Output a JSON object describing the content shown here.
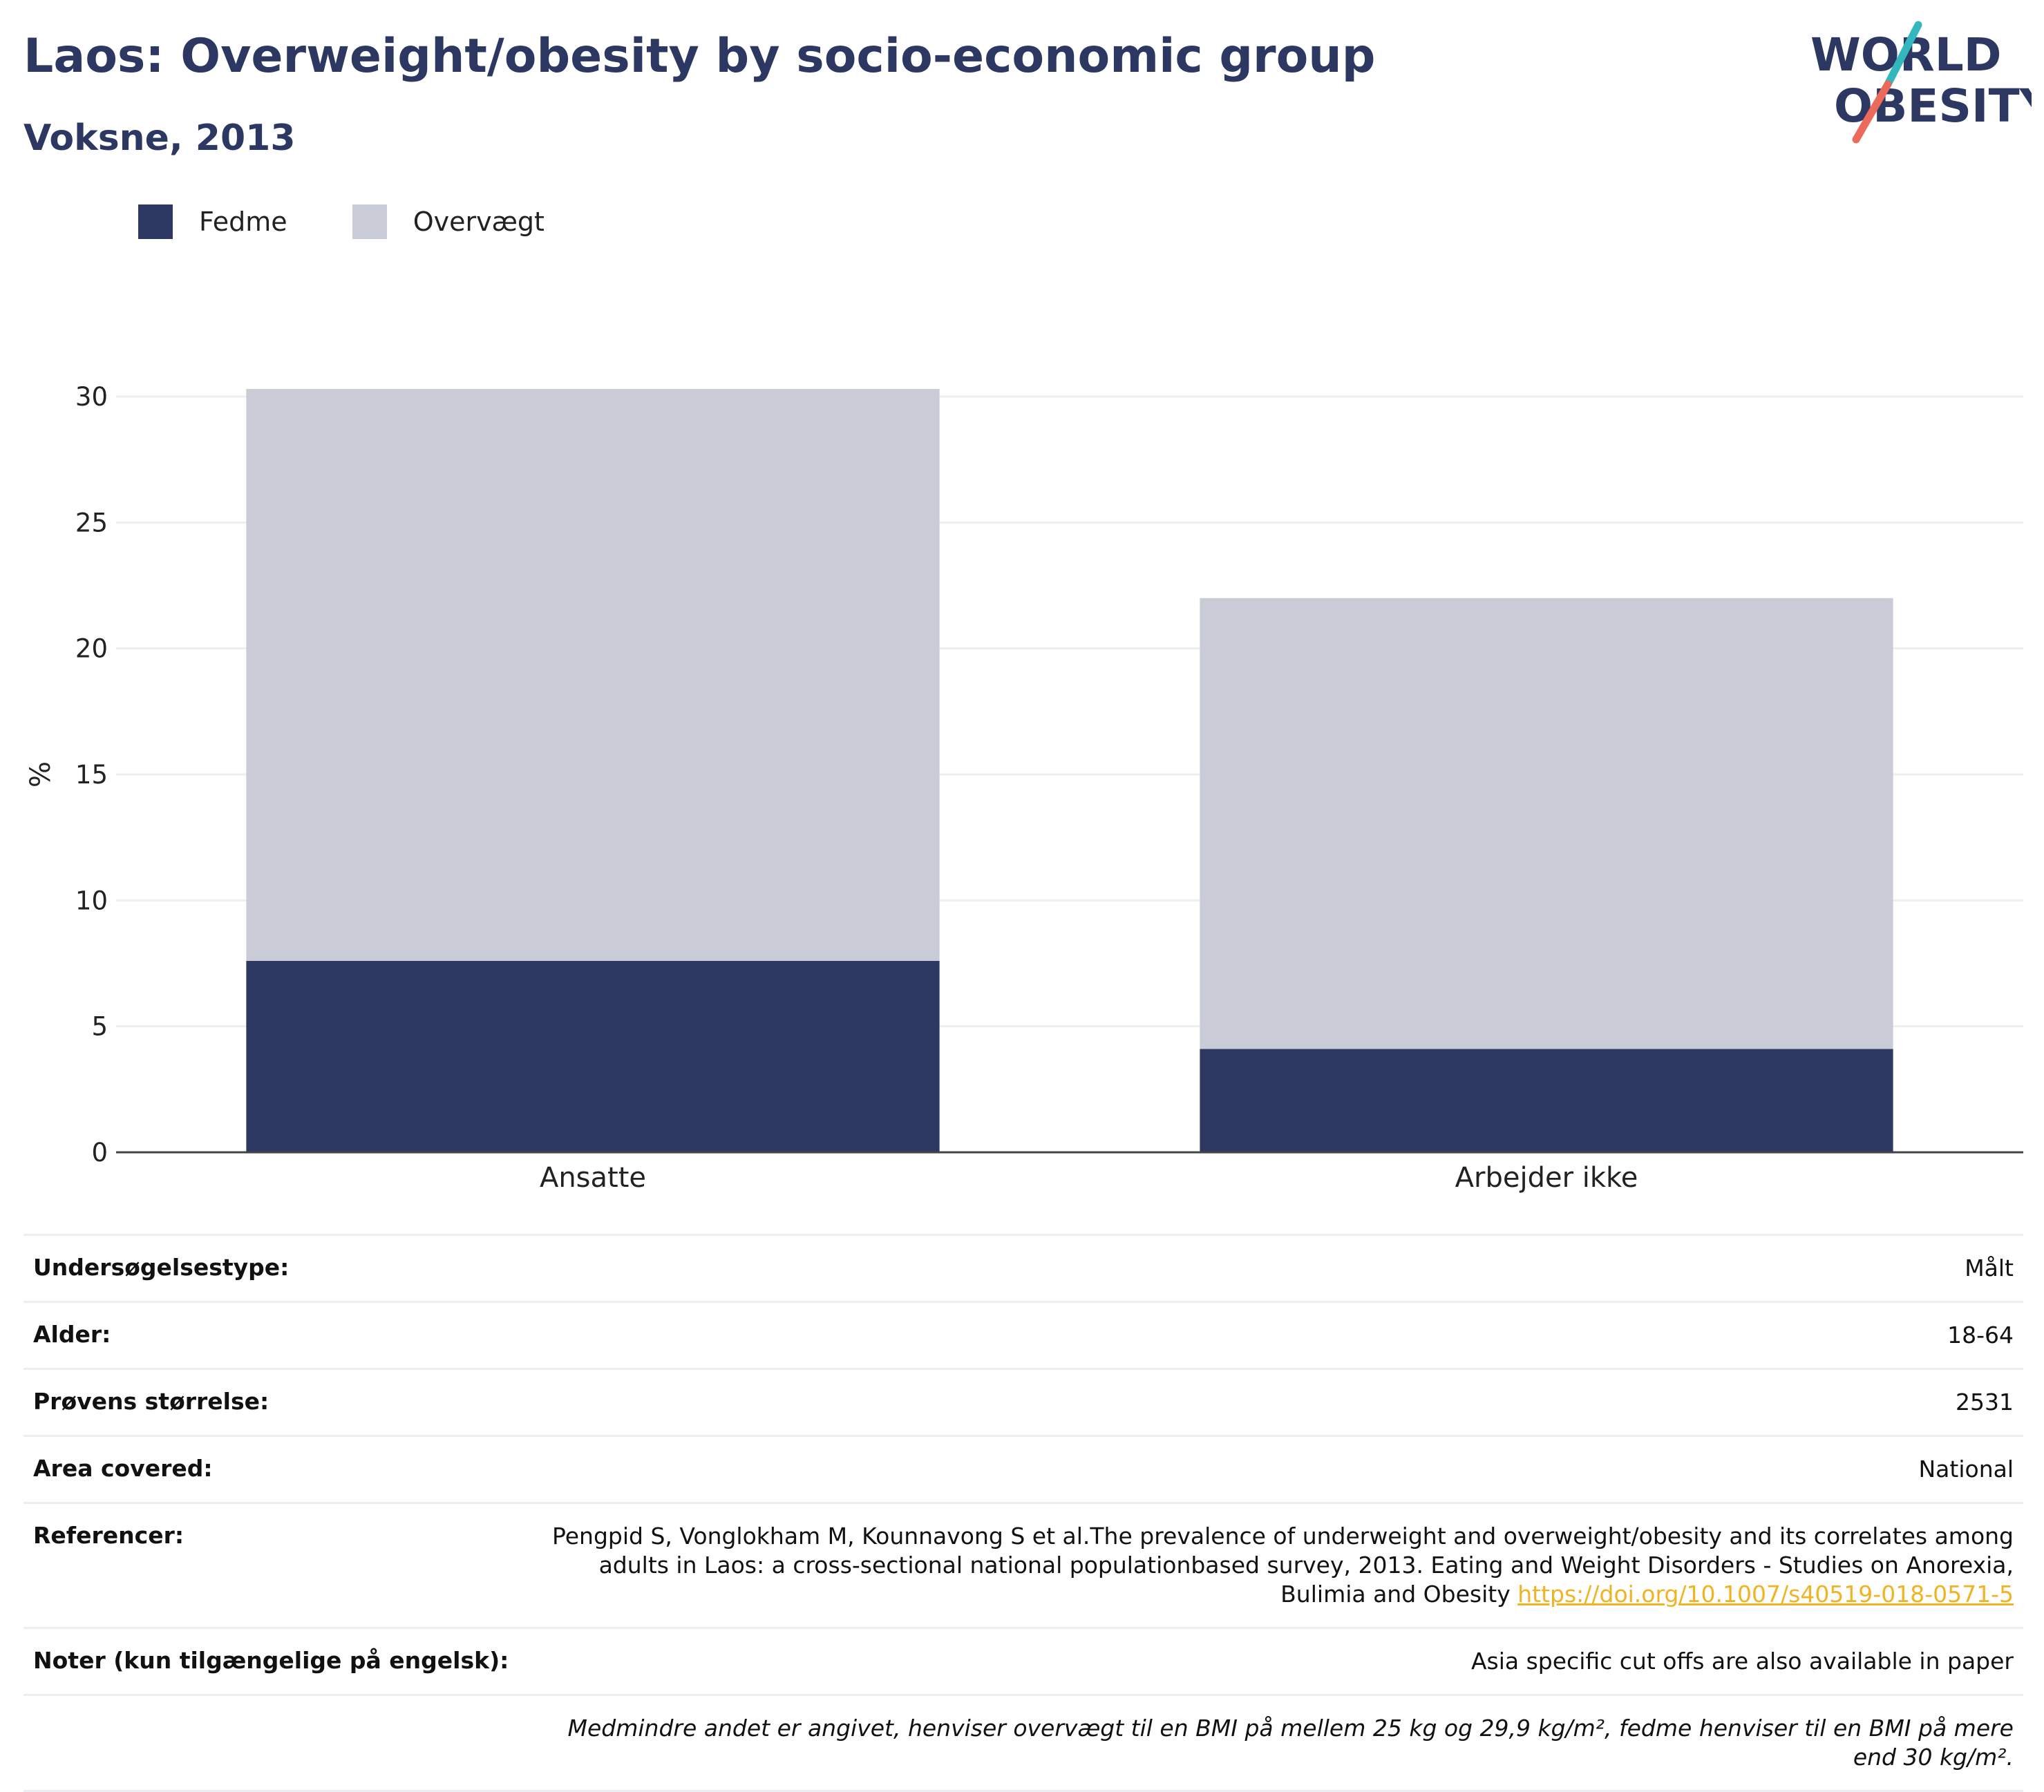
{
  "header": {
    "title": "Laos: Overweight/obesity by socio-economic group",
    "subtitle": "Voksne, 2013"
  },
  "logo": {
    "line1": "WORLD",
    "line2": "OBESITY",
    "colors": {
      "text": "#2c3862",
      "slash_top": "#33b7bd",
      "slash_bottom": "#ec6a5c"
    }
  },
  "colors": {
    "fedme": "#2c3862",
    "overvaegt": "#c9ccd7",
    "grid": "#eceef3",
    "axis": "#444444"
  },
  "chart_data": {
    "type": "bar",
    "stacked": true,
    "categories": [
      "Ansatte",
      "Arbejder ikke"
    ],
    "series": [
      {
        "name": "Fedme",
        "values": [
          7.6,
          4.1
        ]
      },
      {
        "name": "Overvægt",
        "values": [
          22.7,
          17.9
        ]
      }
    ],
    "ylabel": "%",
    "ylim": [
      0,
      30
    ],
    "yticks": [
      0,
      5,
      10,
      15,
      20,
      25,
      30
    ],
    "grid": true,
    "legend_position": "top-left"
  },
  "info": {
    "rows": [
      {
        "label": "Undersøgelsestype:",
        "value": "Målt"
      },
      {
        "label": "Alder:",
        "value": "18-64"
      },
      {
        "label": "Prøvens størrelse:",
        "value": "2531"
      },
      {
        "label": "Area covered:",
        "value": "National"
      }
    ],
    "reference": {
      "label": "Referencer:",
      "text": "Pengpid S, Vonglokham M, Kounnavong S et al.The prevalence of underweight and overweight/obesity and its correlates among adults in Laos: a cross-sectional national populationbased survey, 2013. Eating and Weight Disorders - Studies on Anorexia, Bulimia and Obesity",
      "link": "https://doi.org/10.1007/s40519-018-0571-5"
    },
    "notes": {
      "label": "Noter (kun tilgængelige på engelsk):",
      "value": "Asia specific cut offs are also available in paper"
    },
    "footnote": "Medmindre andet er angivet, henviser overvægt til en BMI på mellem 25 kg og 29,9 kg/m², fedme henviser til en BMI på mere end 30 kg/m²."
  }
}
